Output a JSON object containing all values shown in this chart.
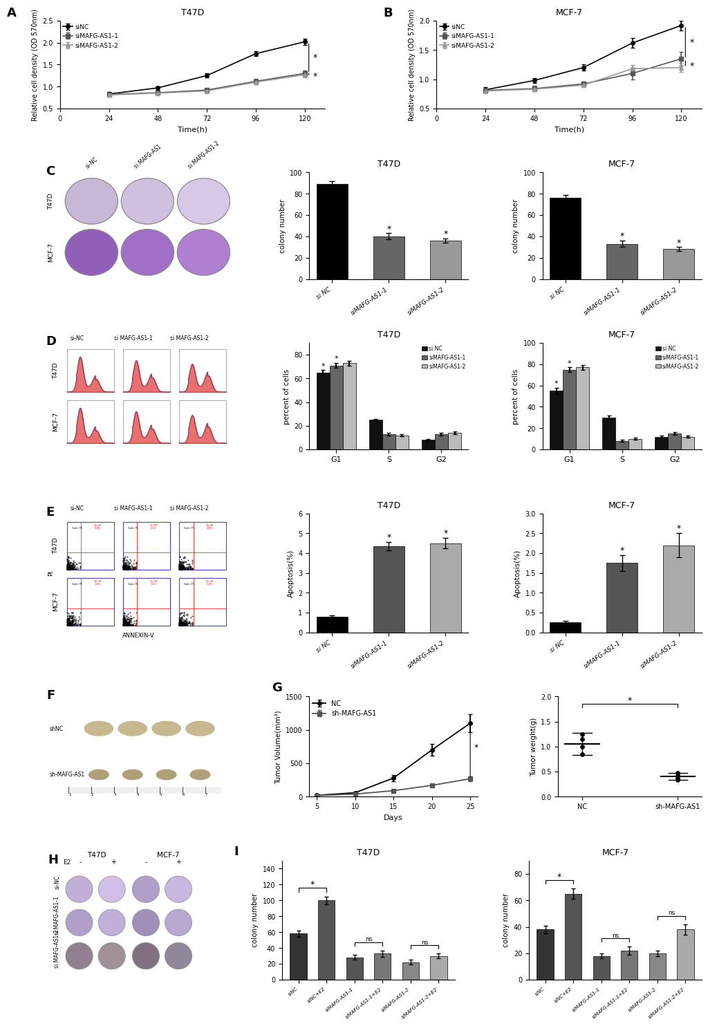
{
  "panel_A": {
    "title": "T47D",
    "xlabel": "Time(h)",
    "ylabel": "Relative cell density (OD 570nm)",
    "timepoints": [
      24,
      48,
      72,
      96,
      120
    ],
    "siNC": [
      0.83,
      0.97,
      1.25,
      1.75,
      2.02
    ],
    "siMAFG1": [
      0.82,
      0.86,
      0.92,
      1.12,
      1.3
    ],
    "siMAFG2": [
      0.81,
      0.85,
      0.9,
      1.1,
      1.27
    ],
    "siNC_err": [
      0.04,
      0.04,
      0.05,
      0.06,
      0.07
    ],
    "siMAFG1_err": [
      0.03,
      0.04,
      0.04,
      0.05,
      0.06
    ],
    "siMAFG2_err": [
      0.03,
      0.03,
      0.04,
      0.05,
      0.06
    ],
    "ylim": [
      0.5,
      2.5
    ],
    "yticks": [
      0.5,
      1.0,
      1.5,
      2.0,
      2.5
    ],
    "xlim": [
      0,
      130
    ]
  },
  "panel_B": {
    "title": "MCF-7",
    "xlabel": "Time(h)",
    "ylabel": "Relative cell density (OD 570nm)",
    "timepoints": [
      24,
      48,
      72,
      96,
      120
    ],
    "siNC": [
      0.82,
      0.98,
      1.2,
      1.62,
      1.92
    ],
    "siMAFG1": [
      0.81,
      0.84,
      0.92,
      1.1,
      1.35
    ],
    "siMAFG2": [
      0.8,
      0.83,
      0.9,
      1.18,
      1.2
    ],
    "siNC_err": [
      0.04,
      0.04,
      0.05,
      0.08,
      0.08
    ],
    "siMAFG1_err": [
      0.03,
      0.05,
      0.04,
      0.1,
      0.12
    ],
    "siMAFG2_err": [
      0.03,
      0.04,
      0.04,
      0.06,
      0.07
    ],
    "ylim": [
      0.5,
      2.0
    ],
    "yticks": [
      0.5,
      1.0,
      1.5,
      2.0
    ],
    "xlim": [
      0,
      130
    ]
  },
  "panel_C_T47D": {
    "title": "T47D",
    "categories": [
      "si NC",
      "siMAFG-AS1-1",
      "siMAFG-AS1-2"
    ],
    "values": [
      89,
      40,
      36
    ],
    "errors": [
      3,
      3,
      2
    ],
    "colors": [
      "#000000",
      "#666666",
      "#999999"
    ],
    "ylabel": "colony number",
    "ylim": [
      0,
      100
    ]
  },
  "panel_C_MCF7": {
    "title": "MCF-7",
    "categories": [
      "si NC",
      "siMAFG-AS1-1",
      "siMAFG-AS1-2"
    ],
    "values": [
      76,
      33,
      28
    ],
    "errors": [
      3,
      3,
      2
    ],
    "colors": [
      "#000000",
      "#666666",
      "#999999"
    ],
    "ylabel": "colony number",
    "ylim": [
      0,
      100
    ]
  },
  "panel_D_T47D": {
    "title": "T47D",
    "phases": [
      "G1",
      "S",
      "G2"
    ],
    "siNC": [
      65,
      25,
      8
    ],
    "siMAFG1": [
      71,
      13,
      13
    ],
    "siMAFG2": [
      73,
      12,
      14
    ],
    "siNC_err": [
      2,
      1,
      1
    ],
    "siMAFG1_err": [
      2,
      1,
      1
    ],
    "siMAFG2_err": [
      2,
      1,
      1
    ],
    "ylabel": "percent of cells",
    "ylim": [
      0,
      90
    ],
    "legend": [
      "si NC",
      "siMAFG-AS1-1",
      "siMAFG-AS1-2"
    ],
    "colors": [
      "#111111",
      "#666666",
      "#bbbbbb"
    ]
  },
  "panel_D_MCF7": {
    "title": "MCF-7",
    "phases": [
      "G1",
      "S",
      "G2"
    ],
    "siNC": [
      55,
      30,
      12
    ],
    "siMAFG1": [
      75,
      8,
      15
    ],
    "siMAFG2": [
      77,
      10,
      12
    ],
    "siNC_err": [
      3,
      2,
      1
    ],
    "siMAFG1_err": [
      2,
      1,
      1
    ],
    "siMAFG2_err": [
      2,
      1,
      1
    ],
    "ylabel": "percent of cells",
    "ylim": [
      0,
      100
    ],
    "legend": [
      "si NC",
      "siMAFG-AS1-1",
      "siMAFG-AS1-2"
    ],
    "colors": [
      "#111111",
      "#666666",
      "#bbbbbb"
    ]
  },
  "panel_E_T47D": {
    "title": "T47D",
    "categories": [
      "si NC",
      "siMAFG-AS1-1",
      "siMAFG-AS1-2"
    ],
    "values": [
      0.8,
      4.35,
      4.5
    ],
    "errors": [
      0.08,
      0.2,
      0.25
    ],
    "colors": [
      "#000000",
      "#555555",
      "#aaaaaa"
    ],
    "ylabel": "Apoptosis(%)",
    "ylim": [
      0,
      6
    ]
  },
  "panel_E_MCF7": {
    "title": "MCF-7",
    "categories": [
      "si NC",
      "siMAFG-AS1-1",
      "siMAFG-AS1-2"
    ],
    "values": [
      0.25,
      1.75,
      2.2
    ],
    "errors": [
      0.05,
      0.2,
      0.3
    ],
    "colors": [
      "#000000",
      "#555555",
      "#aaaaaa"
    ],
    "ylabel": "Apoptosis(%)",
    "ylim": [
      0,
      3
    ]
  },
  "panel_G_volume": {
    "days": [
      5,
      10,
      15,
      20,
      25
    ],
    "NC": [
      20,
      60,
      280,
      700,
      1100
    ],
    "shMAFG": [
      18,
      40,
      90,
      170,
      270
    ],
    "NC_err": [
      8,
      15,
      45,
      90,
      130
    ],
    "shMAFG_err": [
      6,
      8,
      18,
      25,
      35
    ],
    "ylabel": "Tumor Volume(mm³)",
    "xlabel": "Days",
    "ylim": [
      0,
      1500
    ],
    "yticks": [
      0,
      500,
      1000,
      1500
    ],
    "legend": [
      "NC",
      "sh-MAFG-AS1"
    ]
  },
  "panel_G_weight": {
    "categories": [
      "NC",
      "sh-MAFG-AS1"
    ],
    "values": [
      1.05,
      0.4
    ],
    "errors": [
      0.22,
      0.07
    ],
    "individual_NC": [
      0.85,
      1.0,
      1.15,
      1.25
    ],
    "individual_sh": [
      0.33,
      0.37,
      0.42,
      0.48
    ],
    "ylabel": "Tumor weight(g)",
    "ylim": [
      0,
      2.0
    ]
  },
  "panel_I_T47D": {
    "title": "T47D",
    "categories": [
      "siNC",
      "siNC+E2",
      "siMAFG-AS1-1",
      "siMAFG-AS1-1+E2",
      "siMAFG-AS1-2",
      "siMAFG-AS1-2+E2"
    ],
    "values": [
      58,
      100,
      28,
      33,
      22,
      30
    ],
    "errors": [
      4,
      5,
      3,
      4,
      3,
      3
    ],
    "colors": [
      "#333333",
      "#555555",
      "#555555",
      "#777777",
      "#888888",
      "#aaaaaa"
    ],
    "ylabel": "colony number",
    "ylim": [
      0,
      150
    ]
  },
  "panel_I_MCF7": {
    "title": "MCF-7",
    "categories": [
      "siNC",
      "siNC+E2",
      "siMAFG-AS1-1",
      "siMAFG-AS1-1+E2",
      "siMAFG-AS1-2",
      "siMAFG-AS1-2+E2"
    ],
    "values": [
      38,
      65,
      18,
      22,
      20,
      38
    ],
    "errors": [
      3,
      4,
      2,
      3,
      2,
      4
    ],
    "colors": [
      "#333333",
      "#555555",
      "#555555",
      "#777777",
      "#888888",
      "#aaaaaa"
    ],
    "ylabel": "colony number",
    "ylim": [
      0,
      90
    ]
  },
  "line_colors": {
    "siNC": "#000000",
    "siMAFG1": "#555555",
    "siMAFG2": "#999999"
  },
  "markers": {
    "siNC": "o",
    "siMAFG1": "s",
    "siMAFG2": "^"
  }
}
